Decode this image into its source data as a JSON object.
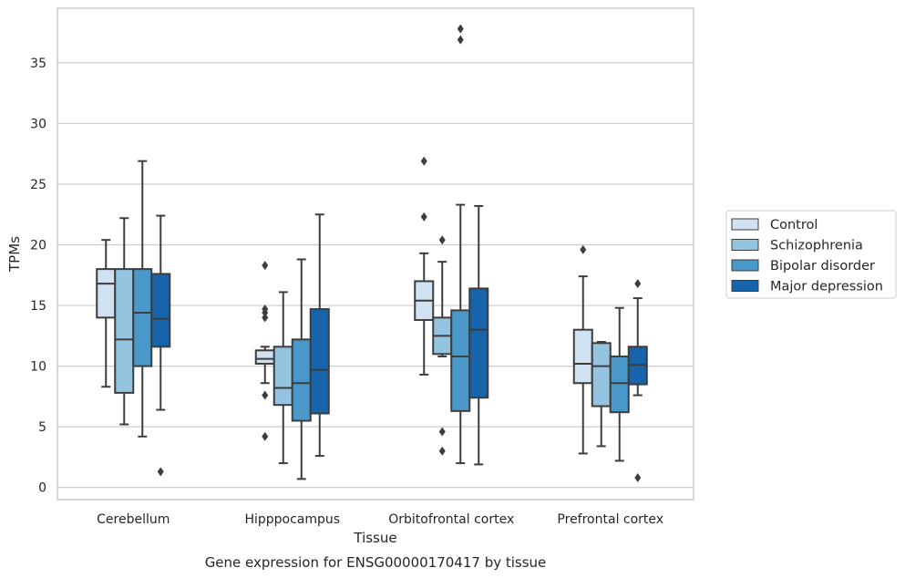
{
  "chart_data": {
    "type": "box",
    "title": "",
    "caption": "Gene expression for ENSG00000170417 by tissue",
    "xlabel": "Tissue",
    "ylabel": "TPMs",
    "ylim": [
      -1,
      39.5
    ],
    "yticks": [
      0,
      5,
      10,
      15,
      20,
      25,
      30,
      35
    ],
    "grid": true,
    "legend_position": "right",
    "categories": [
      "Cerebellum",
      "Hipppocampus",
      "Orbitofrontal cortex",
      "Prefrontal cortex"
    ],
    "series": [
      {
        "name": "Control",
        "color": "#d0e1f2",
        "boxes": [
          {
            "whisker_low": 8.3,
            "q1": 14.0,
            "median": 16.8,
            "q3": 18.0,
            "whisker_high": 20.4,
            "outliers": []
          },
          {
            "whisker_low": 8.6,
            "q1": 10.2,
            "median": 10.6,
            "q3": 11.3,
            "whisker_high": 11.6,
            "outliers": [
              4.2,
              7.6,
              14.0,
              14.4,
              14.7,
              18.3
            ]
          },
          {
            "whisker_low": 9.3,
            "q1": 13.8,
            "median": 15.4,
            "q3": 17.0,
            "whisker_high": 19.3,
            "outliers": [
              22.3,
              26.9
            ]
          },
          {
            "whisker_low": 2.8,
            "q1": 8.6,
            "median": 10.2,
            "q3": 13.0,
            "whisker_high": 17.4,
            "outliers": [
              19.6
            ]
          }
        ]
      },
      {
        "name": "Schizophrenia",
        "color": "#94c4df",
        "boxes": [
          {
            "whisker_low": 5.2,
            "q1": 7.8,
            "median": 12.2,
            "q3": 18.0,
            "whisker_high": 22.2,
            "outliers": []
          },
          {
            "whisker_low": 2.0,
            "q1": 6.8,
            "median": 8.2,
            "q3": 11.6,
            "whisker_high": 16.1,
            "outliers": []
          },
          {
            "whisker_low": 10.8,
            "q1": 11.0,
            "median": 12.5,
            "q3": 14.0,
            "whisker_high": 18.6,
            "outliers": [
              3.0,
              4.6,
              20.4
            ]
          },
          {
            "whisker_low": 3.4,
            "q1": 6.7,
            "median": 10.0,
            "q3": 11.9,
            "whisker_high": 12.0,
            "outliers": []
          }
        ]
      },
      {
        "name": "Bipolar disorder",
        "color": "#4a98c9",
        "boxes": [
          {
            "whisker_low": 4.2,
            "q1": 10.0,
            "median": 14.4,
            "q3": 18.0,
            "whisker_high": 26.9,
            "outliers": []
          },
          {
            "whisker_low": 0.7,
            "q1": 5.5,
            "median": 8.6,
            "q3": 12.2,
            "whisker_high": 18.8,
            "outliers": []
          },
          {
            "whisker_low": 2.0,
            "q1": 6.3,
            "median": 10.8,
            "q3": 14.6,
            "whisker_high": 23.3,
            "outliers": [
              36.9,
              37.8
            ]
          },
          {
            "whisker_low": 2.2,
            "q1": 6.2,
            "median": 8.6,
            "q3": 10.8,
            "whisker_high": 14.8,
            "outliers": []
          }
        ]
      },
      {
        "name": "Major depression",
        "color": "#1764ab",
        "boxes": [
          {
            "whisker_low": 6.4,
            "q1": 11.6,
            "median": 13.9,
            "q3": 17.6,
            "whisker_high": 22.4,
            "outliers": [
              1.3
            ]
          },
          {
            "whisker_low": 2.6,
            "q1": 6.1,
            "median": 9.7,
            "q3": 14.7,
            "whisker_high": 22.5,
            "outliers": []
          },
          {
            "whisker_low": 1.9,
            "q1": 7.4,
            "median": 13.0,
            "q3": 16.4,
            "whisker_high": 23.2,
            "outliers": []
          },
          {
            "whisker_low": 7.6,
            "q1": 8.5,
            "median": 10.1,
            "q3": 11.6,
            "whisker_high": 15.6,
            "outliers": [
              0.8,
              16.8
            ]
          }
        ]
      }
    ]
  }
}
